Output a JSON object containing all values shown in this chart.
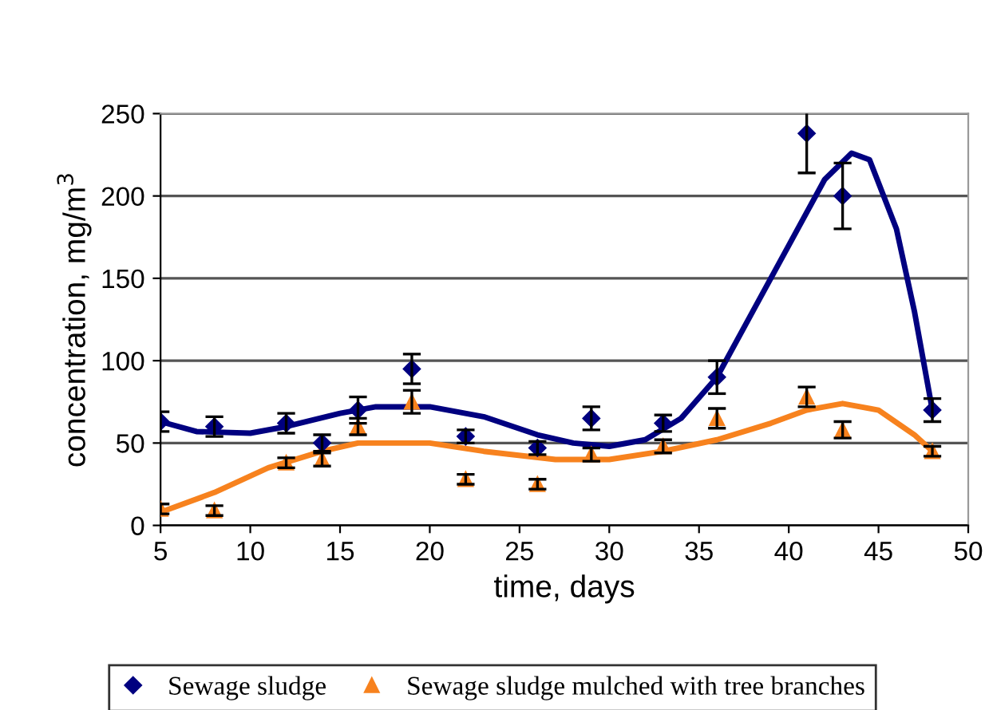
{
  "chart_data": {
    "type": "scatter",
    "xlabel": "time, days",
    "ylabel": "concentration, mg/m$^{3}$",
    "xlim": [
      5,
      50
    ],
    "xticks": [
      5,
      10,
      15,
      20,
      25,
      30,
      35,
      40,
      45,
      50
    ],
    "ylim": [
      0,
      250
    ],
    "yticks": [
      0,
      50,
      100,
      150,
      200,
      250
    ],
    "grid": "y",
    "legend": "bottom",
    "series": [
      {
        "name": "Sewage sludge",
        "color": "#000080",
        "marker": "diamond",
        "x": [
          5,
          8,
          12,
          14,
          16,
          19,
          22,
          26,
          29,
          33,
          36,
          41,
          43,
          48
        ],
        "values": [
          63,
          60,
          62,
          50,
          70,
          95,
          54,
          47,
          65,
          62,
          90,
          238,
          200,
          70
        ],
        "errors": [
          6,
          6,
          6,
          5,
          8,
          9,
          4,
          4,
          7,
          5,
          10,
          24,
          20,
          7
        ]
      },
      {
        "name": "Sewage sludge mulched with tree branches",
        "color": "#f7821e",
        "marker": "triangle",
        "x": [
          5,
          8,
          12,
          14,
          16,
          19,
          22,
          26,
          29,
          33,
          36,
          41,
          43,
          48
        ],
        "values": [
          10,
          9,
          38,
          40,
          60,
          75,
          28,
          25,
          43,
          48,
          65,
          78,
          58,
          45
        ],
        "errors": [
          3,
          3,
          3,
          4,
          5,
          7,
          3,
          3,
          4,
          4,
          6,
          6,
          5,
          3
        ]
      },
      {
        "type": "line",
        "color": "#000080",
        "marker": "none",
        "x": [
          5,
          7,
          10,
          12,
          15,
          17,
          20,
          23,
          26,
          28,
          30,
          32,
          34,
          36,
          38,
          40,
          42,
          43.5,
          44.5,
          46,
          47,
          47.5,
          48
        ],
        "values": [
          63,
          57,
          56,
          60,
          68,
          72,
          72,
          66,
          55,
          50,
          48,
          52,
          65,
          90,
          130,
          170,
          210,
          226,
          222,
          180,
          130,
          100,
          70
        ]
      },
      {
        "type": "line",
        "color": "#f7821e",
        "marker": "none",
        "x": [
          5,
          8,
          11,
          14,
          16,
          20,
          23,
          27,
          30,
          33,
          36,
          39,
          41,
          43,
          45,
          47,
          48
        ],
        "values": [
          8,
          20,
          35,
          45,
          50,
          50,
          45,
          40,
          40,
          45,
          52,
          62,
          70,
          74,
          70,
          55,
          45
        ]
      }
    ]
  }
}
